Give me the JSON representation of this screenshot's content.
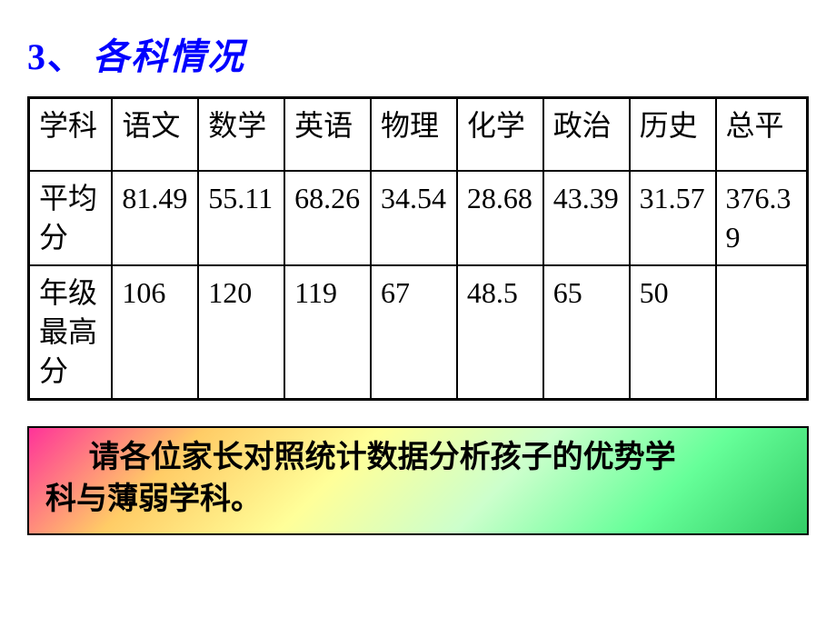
{
  "heading": {
    "number": "3、",
    "text": "各科情况"
  },
  "table": {
    "columns": [
      "学科",
      "语文",
      "数学",
      "英语",
      "物理",
      "化学",
      "政治",
      "历史",
      "总平"
    ],
    "rows": [
      {
        "label": "平均分",
        "cells": [
          "81.49",
          "55.11",
          "68.26",
          "34.54",
          "28.68",
          "43.39",
          "31.57",
          "376.39"
        ]
      },
      {
        "label": "年级最高分",
        "cells": [
          "106",
          "120",
          "119",
          "67",
          "48.5",
          "65",
          "50",
          ""
        ]
      }
    ],
    "border_color": "#000000",
    "cell_fontsize": 32,
    "text_color": "#000000",
    "background_color": "#ffffff"
  },
  "note": {
    "line1": "请各位家长对照统计数据分析孩子的优势学",
    "line2": "科与薄弱学科。",
    "gradient_colors": [
      "#ff3399",
      "#ffcc66",
      "#ffff99",
      "#ccffcc",
      "#66ff99",
      "#33cc66"
    ],
    "border_color": "#000000",
    "text_color": "#000000",
    "fontsize": 34
  },
  "style": {
    "heading_color": "#0000ff",
    "heading_fontsize": 40,
    "background_color": "#ffffff"
  }
}
